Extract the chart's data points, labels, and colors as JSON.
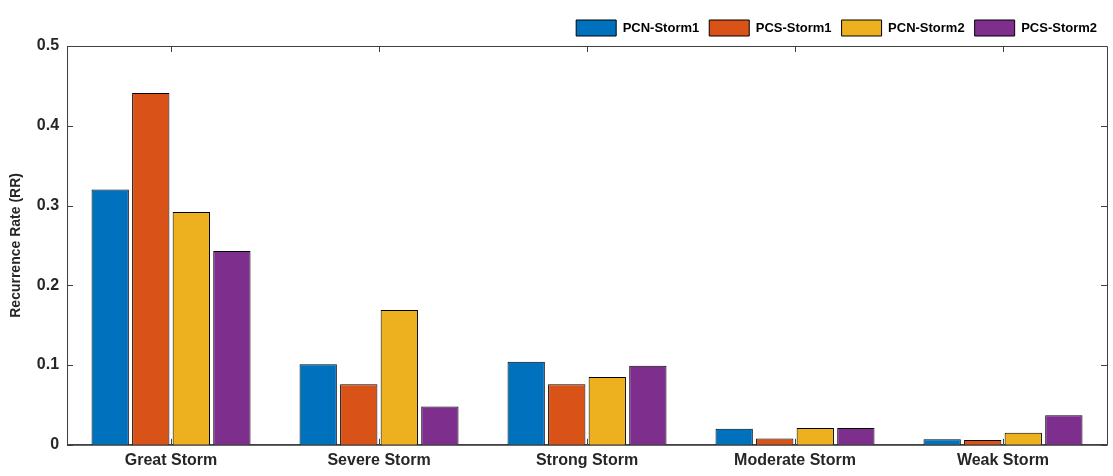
{
  "chart_data": {
    "type": "bar",
    "ylabel": "Recurrence Rate (RR)",
    "categories": [
      "Great Storm",
      "Severe Storm",
      "Strong Storm",
      "Moderate Storm",
      "Weak Storm"
    ],
    "series": [
      {
        "name": "PCN-Storm1",
        "color": "#0072bd",
        "values": [
          0.32,
          0.101,
          0.104,
          0.02,
          0.007
        ]
      },
      {
        "name": "PCS-Storm1",
        "color": "#d95319",
        "values": [
          0.441,
          0.076,
          0.076,
          0.008,
          0.006
        ]
      },
      {
        "name": "PCN-Storm2",
        "color": "#edb120",
        "values": [
          0.292,
          0.169,
          0.085,
          0.021,
          0.015
        ]
      },
      {
        "name": "PCS-Storm2",
        "color": "#7e2f8e",
        "values": [
          0.243,
          0.048,
          0.099,
          0.021,
          0.037
        ]
      }
    ],
    "ylim": [
      0,
      0.5
    ],
    "yticks": [
      0,
      0.1,
      0.2,
      0.3,
      0.4,
      0.5
    ],
    "grid": false,
    "legend": "top right"
  }
}
